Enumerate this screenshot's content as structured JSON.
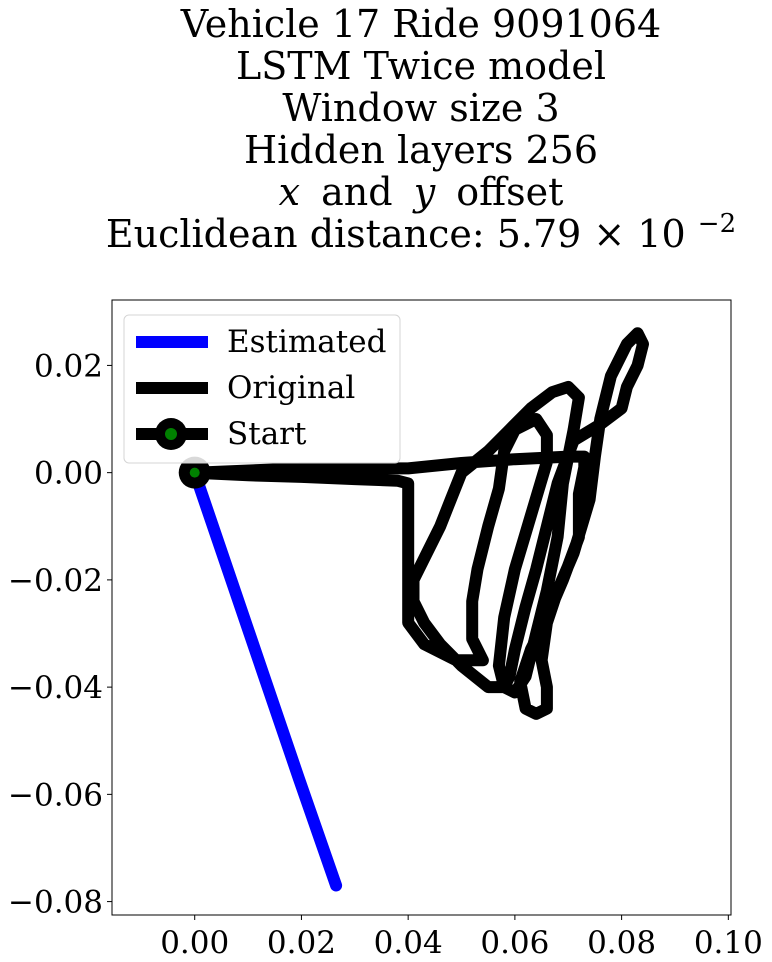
{
  "chart_data": {
    "type": "line",
    "title_lines": [
      "Vehicle 17 Ride 9091064",
      "LSTM Twice model",
      "Window size 3",
      "Hidden layers 256"
    ],
    "title_offset_line": {
      "x": "x",
      "and": "and",
      "y": "y",
      "offset": "offset"
    },
    "title_distance": {
      "prefix": "Euclidean distance: 5.79 × 10",
      "exponent": "−2"
    },
    "xlabel": "",
    "ylabel": "",
    "xlim": [
      -0.0155,
      0.1005
    ],
    "ylim": [
      -0.0825,
      0.0322
    ],
    "xticks": [
      {
        "value": 0.0,
        "label": "0.00"
      },
      {
        "value": 0.02,
        "label": "0.02"
      },
      {
        "value": 0.04,
        "label": "0.04"
      },
      {
        "value": 0.06,
        "label": "0.06"
      },
      {
        "value": 0.08,
        "label": "0.08"
      },
      {
        "value": 0.1,
        "label": "0.10"
      }
    ],
    "yticks": [
      {
        "value": 0.02,
        "label": "0.02"
      },
      {
        "value": 0.0,
        "label": "0.00"
      },
      {
        "value": -0.02,
        "label": "−0.02"
      },
      {
        "value": -0.04,
        "label": "−0.04"
      },
      {
        "value": -0.06,
        "label": "−0.06"
      },
      {
        "value": -0.08,
        "label": "−0.08"
      }
    ],
    "grid": false,
    "legend_position": "upper-left",
    "legend": [
      {
        "label": "Estimated",
        "color": "#0000ff",
        "style": "line"
      },
      {
        "label": "Original",
        "color": "#000000",
        "style": "line"
      },
      {
        "label": "Start",
        "color": "#000000",
        "style": "line-marker",
        "marker_color": "#008000"
      }
    ],
    "series": [
      {
        "name": "Original",
        "color": "#000000",
        "points": [
          [
            0.0,
            0.0
          ],
          [
            0.02,
            0.0008
          ],
          [
            0.04,
            0.0008
          ],
          [
            0.05,
            0.0018
          ],
          [
            0.06,
            0.0025
          ],
          [
            0.07,
            0.003
          ],
          [
            0.073,
            0.003
          ],
          [
            0.073,
            0.001
          ],
          [
            0.072,
            -0.004
          ],
          [
            0.072,
            -0.012
          ],
          [
            0.069,
            -0.02
          ],
          [
            0.066,
            -0.027
          ],
          [
            0.063,
            -0.033
          ],
          [
            0.061,
            -0.039
          ],
          [
            0.062,
            -0.044
          ],
          [
            0.064,
            -0.045
          ],
          [
            0.066,
            -0.044
          ],
          [
            0.066,
            -0.04
          ],
          [
            0.065,
            -0.035
          ],
          [
            0.066,
            -0.028
          ],
          [
            0.068,
            -0.022
          ],
          [
            0.071,
            -0.015
          ],
          [
            0.074,
            -0.005
          ],
          [
            0.075,
            0.003
          ],
          [
            0.076,
            0.01
          ],
          [
            0.078,
            0.018
          ],
          [
            0.081,
            0.024
          ],
          [
            0.083,
            0.026
          ],
          [
            0.084,
            0.024
          ],
          [
            0.083,
            0.02
          ],
          [
            0.081,
            0.016
          ],
          [
            0.08,
            0.012
          ],
          [
            0.076,
            0.009
          ],
          [
            0.071,
            0.006
          ],
          [
            0.068,
            -0.002
          ],
          [
            0.066,
            -0.01
          ],
          [
            0.064,
            -0.018
          ],
          [
            0.062,
            -0.025
          ],
          [
            0.06,
            -0.033
          ],
          [
            0.059,
            -0.038
          ],
          [
            0.058,
            -0.04
          ],
          [
            0.055,
            -0.04
          ],
          [
            0.05,
            -0.036
          ],
          [
            0.046,
            -0.032
          ],
          [
            0.043,
            -0.028
          ],
          [
            0.041,
            -0.024
          ],
          [
            0.041,
            -0.02
          ],
          [
            0.043,
            -0.016
          ],
          [
            0.046,
            -0.01
          ],
          [
            0.048,
            -0.005
          ],
          [
            0.05,
            0.0
          ],
          [
            0.055,
            0.004
          ],
          [
            0.059,
            0.008
          ],
          [
            0.063,
            0.012
          ],
          [
            0.067,
            0.015
          ],
          [
            0.07,
            0.016
          ],
          [
            0.072,
            0.014
          ],
          [
            0.071,
            0.008
          ],
          [
            0.069,
            -0.002
          ],
          [
            0.068,
            -0.012
          ],
          [
            0.066,
            -0.022
          ],
          [
            0.064,
            -0.03
          ],
          [
            0.062,
            -0.038
          ],
          [
            0.06,
            -0.041
          ],
          [
            0.058,
            -0.04
          ],
          [
            0.057,
            -0.036
          ],
          [
            0.058,
            -0.027
          ],
          [
            0.06,
            -0.018
          ],
          [
            0.063,
            -0.008
          ],
          [
            0.066,
            0.002
          ],
          [
            0.066,
            0.007
          ],
          [
            0.064,
            0.01
          ],
          [
            0.06,
            0.008
          ],
          [
            0.058,
            0.004
          ],
          [
            0.057,
            -0.003
          ],
          [
            0.055,
            -0.01
          ],
          [
            0.053,
            -0.018
          ],
          [
            0.052,
            -0.024
          ],
          [
            0.052,
            -0.031
          ],
          [
            0.054,
            -0.035
          ],
          [
            0.049,
            -0.035
          ],
          [
            0.043,
            -0.032
          ],
          [
            0.04,
            -0.028
          ],
          [
            0.04,
            -0.022
          ],
          [
            0.04,
            -0.014
          ],
          [
            0.04,
            -0.006
          ],
          [
            0.04,
            -0.002
          ],
          [
            0.038,
            -0.0015
          ],
          [
            0.03,
            -0.0012
          ],
          [
            0.02,
            -0.0008
          ],
          [
            0.01,
            -0.0005
          ],
          [
            0.0,
            0.0
          ]
        ]
      },
      {
        "name": "Estimated",
        "color": "#0000ff",
        "points": [
          [
            0.0,
            0.0
          ],
          [
            0.0065,
            -0.019
          ],
          [
            0.013,
            -0.038
          ],
          [
            0.0195,
            -0.057
          ],
          [
            0.0265,
            -0.077
          ]
        ]
      }
    ],
    "start_point": {
      "x": 0.0,
      "y": 0.0,
      "marker_color": "#008000",
      "ring_color": "#000000"
    }
  }
}
